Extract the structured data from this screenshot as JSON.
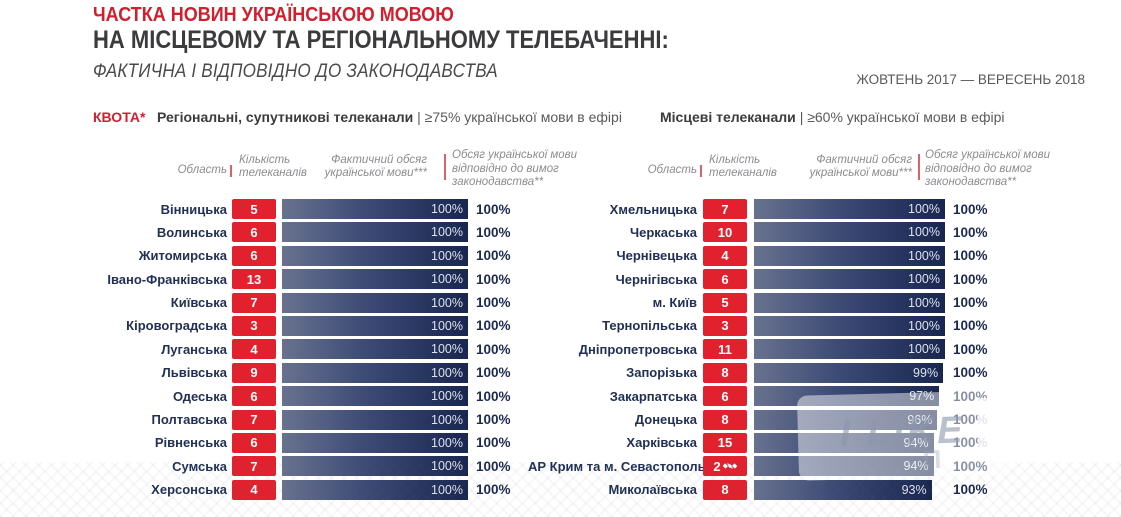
{
  "colors": {
    "title_red": "#d21f2e",
    "badge_red": "#e2212e",
    "separator_red": "#d9626b",
    "bar_gradient_start": "#68728f",
    "bar_gradient_mid": "#3c4a75",
    "bar_gradient_end": "#182650",
    "navy_text": "#1d2a50"
  },
  "header": {
    "title_accent": "ЧАСТКА НОВИН УКРАЇНСЬКОЮ МОВОЮ",
    "title_main": "НА МІСЦЕВОМУ ТА РЕГІОНАЛЬНОМУ ТЕЛЕБАЧЕННІ:",
    "subtitle": "ФАКТИЧНА І ВІДПОВІДНО ДО ЗАКОНОДАВСТВА",
    "period": "ЖОВТЕНЬ 2017 — ВЕРЕСЕНЬ 2018"
  },
  "quota": {
    "label": "КВОТА*",
    "regional_bold": "Регіональні, супутникові телеканали",
    "regional_rest": "| ≥75% української мови в ефірі",
    "local_bold": "Місцеві телеканали",
    "local_rest": "| ≥60% української мови в ефірі"
  },
  "column_headers": {
    "region": "Область",
    "channels_count": "Кількість телеканалів",
    "actual_share": "Фактичний обсяг української мови***",
    "law_share": "Обсяг української мови відповідно до вимог законодавства**"
  },
  "watermark": {
    "text": "I LIKE",
    "glyph": "П"
  },
  "chart_data": [
    {
      "type": "bar",
      "title": "Регіональні, супутникові телеканали",
      "quota": "≥75% української мови в ефірі",
      "xlim": [
        0,
        100
      ],
      "categories": [
        "Вінницька",
        "Волинська",
        "Житомирська",
        "Івано-Франківська",
        "Київська",
        "Кіровоградська",
        "Луганська",
        "Львівська",
        "Одеська",
        "Полтавська",
        "Рівненська",
        "Сумська",
        "Херсонська"
      ],
      "series": [
        {
          "name": "Кількість телеканалів",
          "values": [
            5,
            6,
            6,
            13,
            7,
            3,
            4,
            9,
            6,
            7,
            6,
            7,
            4
          ]
        },
        {
          "name": "Фактичний обсяг української мови, %",
          "values": [
            100,
            100,
            100,
            100,
            100,
            100,
            100,
            100,
            100,
            100,
            100,
            100,
            100
          ]
        },
        {
          "name": "Обсяг української мови відповідно до вимог законодавства, %",
          "values": [
            100,
            100,
            100,
            100,
            100,
            100,
            100,
            100,
            100,
            100,
            100,
            100,
            100
          ]
        }
      ],
      "satellite_rows": []
    },
    {
      "type": "bar",
      "title": "Місцеві телеканали",
      "quota": "≥60% української мови в ефірі",
      "xlim": [
        0,
        100
      ],
      "categories": [
        "Хмельницька",
        "Черкаська",
        "Чернівецька",
        "Чернігівська",
        "м. Київ",
        "Тернопільська",
        "Дніпропетровська",
        "Запорізька",
        "Закарпатська",
        "Донецька",
        "Харківська",
        "АР Крим та м. Севастополь",
        "Миколаївська"
      ],
      "series": [
        {
          "name": "Кількість телеканалів",
          "values": [
            7,
            10,
            4,
            6,
            5,
            3,
            11,
            8,
            6,
            8,
            15,
            2,
            8
          ]
        },
        {
          "name": "Фактичний обсяг української мови, %",
          "values": [
            100,
            100,
            100,
            100,
            100,
            100,
            100,
            99,
            97,
            96,
            94,
            94,
            93
          ]
        },
        {
          "name": "Обсяг української мови відповідно до вимог законодавства, %",
          "values": [
            100,
            100,
            100,
            100,
            100,
            100,
            100,
            100,
            100,
            100,
            100,
            100,
            100
          ]
        }
      ],
      "satellite_rows": [
        11
      ]
    }
  ]
}
